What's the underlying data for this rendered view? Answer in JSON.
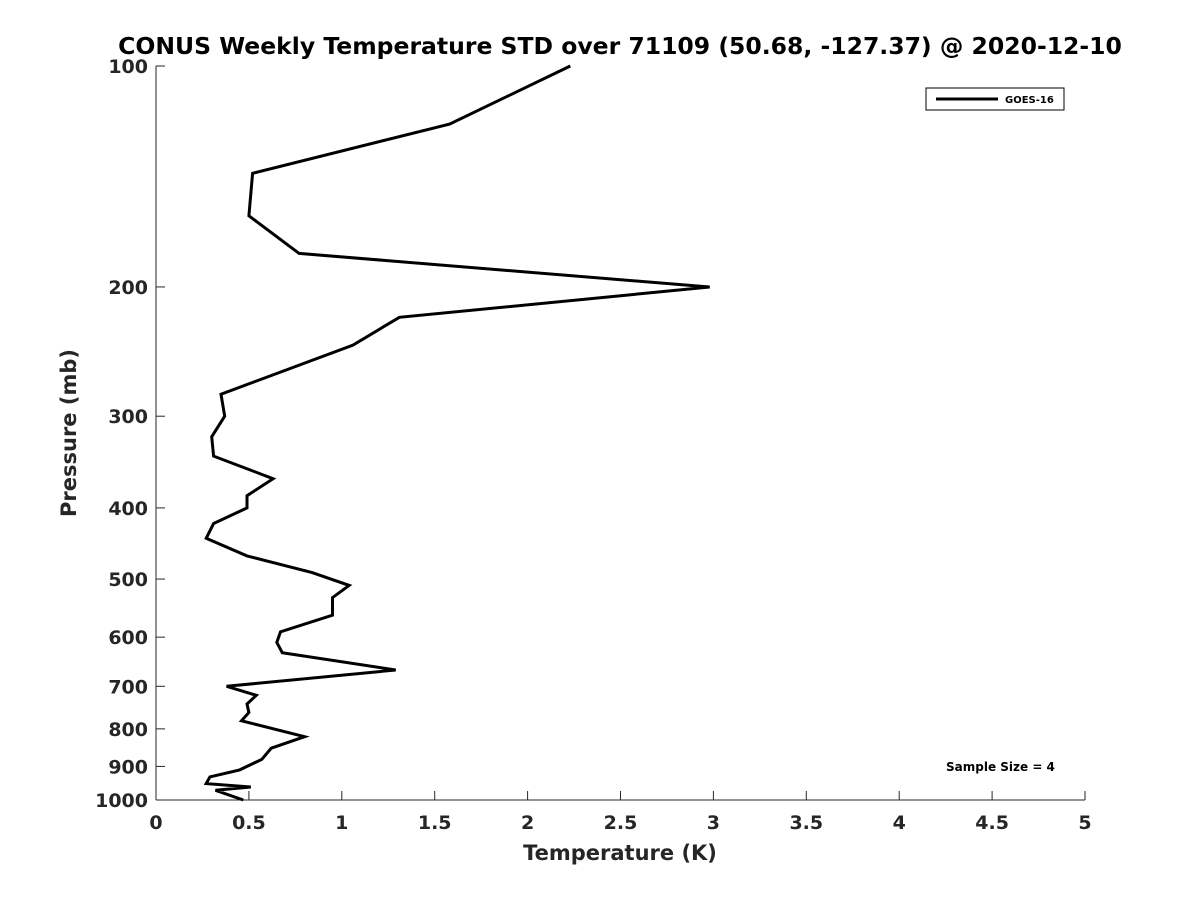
{
  "chart_data": {
    "type": "line",
    "title": "CONUS Weekly Temperature STD over 71109 (50.68, -127.37) @ 2020-12-10",
    "xlabel": "Temperature (K)",
    "ylabel": "Pressure (mb)",
    "xlim": [
      0,
      5
    ],
    "ylim": [
      100,
      1000
    ],
    "yscale": "log",
    "y_reversed": true,
    "x_ticks": [
      0,
      0.5,
      1,
      1.5,
      2,
      2.5,
      3,
      3.5,
      4,
      4.5,
      5
    ],
    "x_tick_labels": [
      "0",
      "0.5",
      "1",
      "1.5",
      "2",
      "2.5",
      "3",
      "3.5",
      "4",
      "4.5",
      "5"
    ],
    "y_ticks": [
      100,
      200,
      300,
      400,
      500,
      600,
      700,
      800,
      900,
      1000
    ],
    "y_tick_labels": [
      "100",
      "200",
      "300",
      "400",
      "500",
      "600",
      "700",
      "800",
      "900",
      "1000"
    ],
    "grid": false,
    "legend_position": "top-right",
    "annotation": "Sample Size = 4",
    "series": [
      {
        "name": "GOES-16",
        "color": "#000000",
        "x": [
          2.23,
          1.58,
          0.52,
          0.5,
          0.77,
          2.98,
          1.31,
          1.06,
          0.35,
          0.37,
          0.3,
          0.31,
          0.63,
          0.49,
          0.49,
          0.31,
          0.27,
          0.49,
          0.84,
          1.04,
          0.95,
          0.95,
          0.67,
          0.65,
          0.68,
          1.29,
          0.38,
          0.54,
          0.49,
          0.5,
          0.46,
          0.8,
          0.62,
          0.57,
          0.45,
          0.29,
          0.27,
          0.51,
          0.32,
          0.47
        ],
        "y": [
          100,
          120,
          140,
          160,
          180,
          200,
          220,
          240,
          280,
          300,
          320,
          340,
          365,
          385,
          400,
          420,
          440,
          465,
          490,
          510,
          530,
          560,
          590,
          610,
          630,
          665,
          700,
          720,
          740,
          760,
          780,
          820,
          850,
          880,
          910,
          930,
          950,
          960,
          970,
          1000
        ]
      }
    ]
  }
}
